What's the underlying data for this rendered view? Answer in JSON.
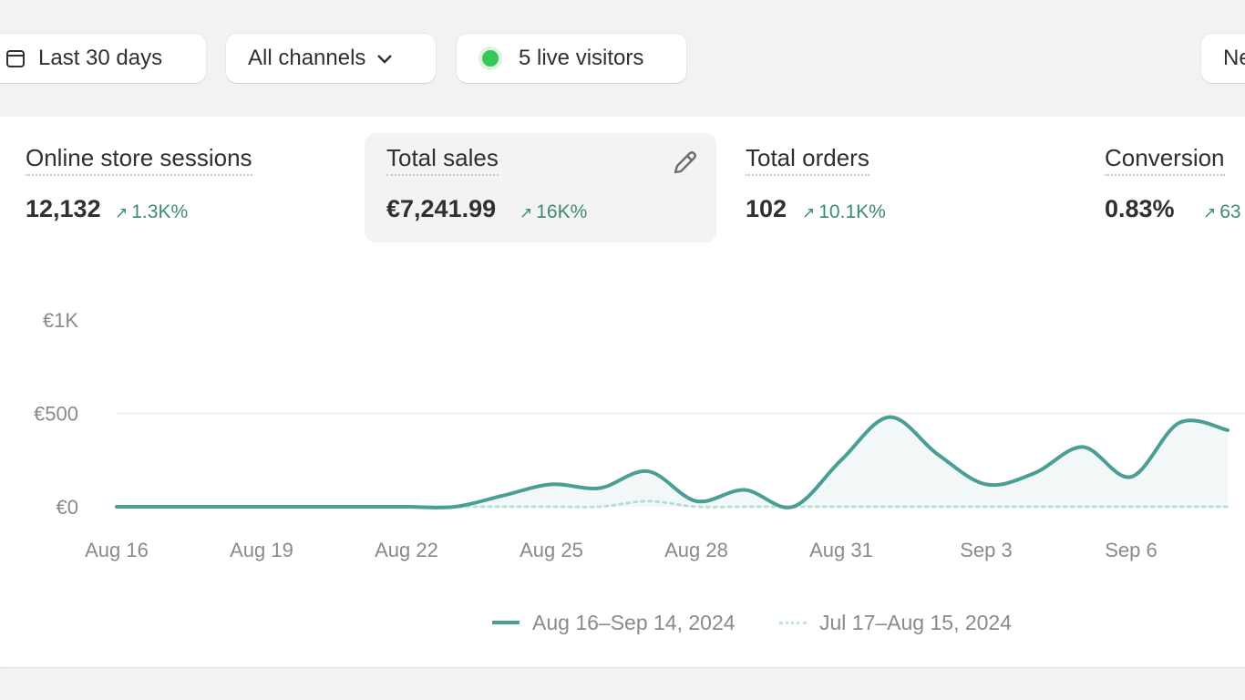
{
  "filters": {
    "date_range": "Last 30 days",
    "channels": "All channels",
    "live_visitors": "5 live visitors",
    "new_partial": "Ne"
  },
  "metrics": [
    {
      "label": "Online store sessions",
      "value": "12,132",
      "change": "1.3K%"
    },
    {
      "label": "Total sales",
      "value": "€7,241.99",
      "change": "16K%"
    },
    {
      "label": "Total orders",
      "value": "102",
      "change": "10.1K%"
    },
    {
      "label": "Conversion",
      "value": "0.83%",
      "change": "63"
    }
  ],
  "colors": {
    "current_series": "#4a9e96",
    "previous_series": "#bfe3de",
    "positive_change": "#3d8c72",
    "live_dot": "#34c759"
  },
  "icons": [
    "calendar-icon",
    "chevron-down-icon",
    "live-dot-icon",
    "pencil-icon",
    "arrow-up-right-icon"
  ],
  "chart_data": {
    "type": "line",
    "y_tick_labels": [
      "€1K",
      "€500",
      "€0"
    ],
    "ylim": [
      0,
      1000
    ],
    "x_tick_labels": [
      "Aug 16",
      "Aug 19",
      "Aug 22",
      "Aug 25",
      "Aug 28",
      "Aug 31",
      "Sep 3",
      "Sep 6"
    ],
    "x": [
      "Aug 16",
      "Aug 17",
      "Aug 18",
      "Aug 19",
      "Aug 20",
      "Aug 21",
      "Aug 22",
      "Aug 23",
      "Aug 24",
      "Aug 25",
      "Aug 26",
      "Aug 27",
      "Aug 28",
      "Aug 29",
      "Aug 30",
      "Aug 31",
      "Sep 1",
      "Sep 2",
      "Sep 3",
      "Sep 4",
      "Sep 5",
      "Sep 6",
      "Sep 7",
      "Sep 8"
    ],
    "series": [
      {
        "name": "Aug 16–Sep 14, 2024",
        "style": "solid",
        "values": [
          0,
          0,
          0,
          0,
          0,
          0,
          0,
          0,
          60,
          120,
          100,
          190,
          30,
          90,
          0,
          250,
          480,
          280,
          120,
          180,
          320,
          160,
          450,
          410
        ]
      },
      {
        "name": "Jul 17–Aug 15, 2024",
        "style": "dotted",
        "values": [
          0,
          0,
          0,
          0,
          0,
          0,
          0,
          0,
          0,
          0,
          0,
          30,
          0,
          0,
          0,
          0,
          0,
          0,
          0,
          0,
          0,
          0,
          0,
          0
        ]
      }
    ],
    "grid": true,
    "legend": "bottom-center"
  }
}
